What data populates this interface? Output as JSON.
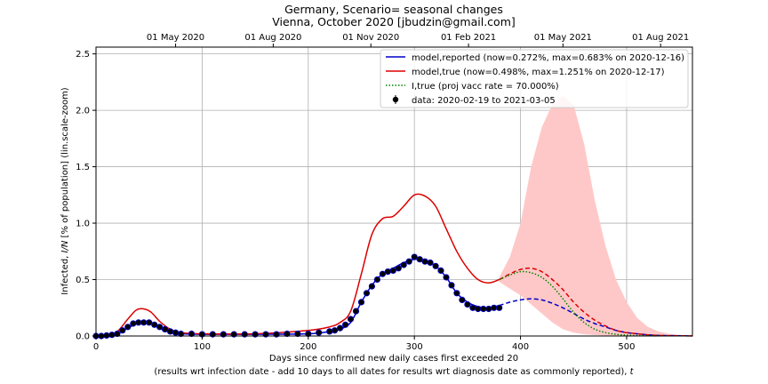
{
  "chart_data": {
    "type": "line",
    "title": "Germany, Scenario= seasonal changes",
    "subtitle": "Vienna, October 2020 [jbudzin@gmail.com]",
    "xlabel": "Days since confirmed new daily cases first exceeded 20",
    "xlabel2_pre": "(results wrt infection date - add 10 days to all dates for results wrt diagnosis date as commonly reported), ",
    "xlabel2_t": "t",
    "ylabel_pre": "Infected, ",
    "ylabel_it": "I/N",
    "ylabel_post": " [% of population] (lin.scale-zoom)",
    "xlim": [
      0,
      562
    ],
    "ylim": [
      0,
      2.56
    ],
    "grid": true,
    "legend_position": "top-right",
    "x_ticks": [
      "0",
      "100",
      "200",
      "300",
      "400",
      "500"
    ],
    "y_ticks": [
      "0.0",
      "0.5",
      "1.0",
      "1.5",
      "2.0",
      "2.5"
    ],
    "top_axis_ticks": [
      {
        "day": 75,
        "label": "01 May 2020"
      },
      {
        "day": 167,
        "label": "01 Aug 2020"
      },
      {
        "day": 259,
        "label": "01 Nov 2020"
      },
      {
        "day": 351,
        "label": "01 Feb 2021"
      },
      {
        "day": 440,
        "label": "01 May 2021"
      },
      {
        "day": 532,
        "label": "01 Aug 2021"
      }
    ],
    "legend": [
      {
        "label": "model,reported (now=0.272%, max=0.683% on 2020-12-16)",
        "color": "#0000cc",
        "style": "solid"
      },
      {
        "label": "model,true (now=0.498%, max=1.251% on 2020-12-17)",
        "color": "#dd0000",
        "style": "solid"
      },
      {
        "label": "I,true (proj vacc rate = 70.000%)",
        "color": "#008000",
        "style": "dotted"
      },
      {
        "label": "data: 2020-02-19 to 2021-03-05",
        "color": "#000000",
        "style": "marker"
      }
    ],
    "series": [
      {
        "name": "model,reported (now=0.272%, max=0.683% on 2020-12-16)",
        "color": "#0000cc",
        "x": [
          0,
          10,
          20,
          30,
          38,
          45,
          52,
          60,
          70,
          80,
          100,
          150,
          200,
          220,
          230,
          240,
          250,
          260,
          270,
          280,
          290,
          300,
          310,
          320,
          330,
          340,
          350,
          360,
          370,
          380
        ],
        "y": [
          0.0,
          0.005,
          0.02,
          0.07,
          0.11,
          0.12,
          0.11,
          0.07,
          0.03,
          0.02,
          0.015,
          0.015,
          0.02,
          0.04,
          0.06,
          0.12,
          0.3,
          0.45,
          0.55,
          0.6,
          0.65,
          0.68,
          0.67,
          0.62,
          0.52,
          0.38,
          0.3,
          0.26,
          0.25,
          0.27
        ]
      },
      {
        "name": "model,reported (projection)",
        "color": "#0000cc",
        "dashed": true,
        "x": [
          380,
          390,
          400,
          410,
          420,
          430,
          440,
          450,
          460,
          470,
          480,
          490,
          500,
          510,
          520,
          530,
          540,
          550,
          562
        ],
        "y": [
          0.27,
          0.3,
          0.32,
          0.33,
          0.32,
          0.29,
          0.25,
          0.2,
          0.15,
          0.11,
          0.08,
          0.05,
          0.03,
          0.02,
          0.01,
          0.005,
          0.003,
          0.002,
          0.001
        ]
      },
      {
        "name": "model,true (now=0.498%, max=1.251% on 2020-12-17)",
        "color": "#dd0000",
        "x": [
          0,
          10,
          20,
          30,
          38,
          45,
          52,
          60,
          70,
          80,
          100,
          150,
          200,
          220,
          230,
          240,
          250,
          260,
          270,
          280,
          290,
          300,
          310,
          320,
          330,
          340,
          350,
          360,
          370,
          380
        ],
        "y": [
          0.0,
          0.01,
          0.04,
          0.15,
          0.23,
          0.24,
          0.21,
          0.13,
          0.06,
          0.03,
          0.02,
          0.02,
          0.05,
          0.08,
          0.12,
          0.22,
          0.55,
          0.9,
          1.04,
          1.06,
          1.15,
          1.25,
          1.24,
          1.15,
          0.95,
          0.75,
          0.6,
          0.5,
          0.47,
          0.5
        ]
      },
      {
        "name": "model,true (projection)",
        "color": "#dd0000",
        "dashed": true,
        "x": [
          380,
          390,
          400,
          410,
          420,
          430,
          440,
          450,
          460,
          470,
          480,
          490,
          500,
          510,
          520,
          530,
          540,
          550,
          562
        ],
        "y": [
          0.5,
          0.55,
          0.59,
          0.6,
          0.57,
          0.5,
          0.41,
          0.3,
          0.21,
          0.14,
          0.09,
          0.05,
          0.03,
          0.02,
          0.01,
          0.005,
          0.003,
          0.002,
          0.001
        ]
      },
      {
        "name": "I,true (proj vacc rate = 70.000%)",
        "color": "#008000",
        "dotted": true,
        "x": [
          380,
          390,
          400,
          410,
          420,
          430,
          440,
          450,
          460,
          470,
          480,
          490,
          500,
          510,
          520,
          530
        ],
        "y": [
          0.5,
          0.54,
          0.57,
          0.56,
          0.52,
          0.44,
          0.33,
          0.21,
          0.12,
          0.06,
          0.03,
          0.015,
          0.008,
          0.004,
          0.002,
          0.001
        ]
      }
    ],
    "band": {
      "color": "#ffc8c8",
      "x": [
        380,
        390,
        400,
        410,
        420,
        430,
        440,
        450,
        460,
        470,
        480,
        490,
        500,
        510,
        520,
        530,
        540,
        550,
        562
      ],
      "upper": [
        0.52,
        0.7,
        1.0,
        1.5,
        1.85,
        2.05,
        2.13,
        2.05,
        1.7,
        1.2,
        0.8,
        0.5,
        0.3,
        0.16,
        0.08,
        0.04,
        0.02,
        0.01,
        0.005
      ],
      "lower": [
        0.48,
        0.42,
        0.36,
        0.28,
        0.2,
        0.12,
        0.06,
        0.03,
        0.015,
        0.008,
        0.004,
        0.002,
        0.001,
        0.0,
        0.0,
        0.0,
        0.0,
        0.0,
        0.0
      ]
    },
    "data_points": {
      "name": "data: 2020-02-19 to 2021-03-05",
      "x": [
        0,
        5,
        10,
        15,
        20,
        25,
        30,
        35,
        40,
        45,
        50,
        55,
        60,
        65,
        70,
        75,
        80,
        90,
        100,
        110,
        120,
        130,
        140,
        150,
        160,
        170,
        180,
        190,
        200,
        210,
        220,
        225,
        230,
        235,
        240,
        245,
        250,
        255,
        260,
        265,
        270,
        275,
        280,
        285,
        290,
        295,
        300,
        305,
        310,
        315,
        320,
        325,
        330,
        335,
        340,
        345,
        350,
        355,
        360,
        365,
        370,
        375,
        380
      ],
      "y": [
        0.0,
        0.0,
        0.005,
        0.01,
        0.02,
        0.05,
        0.08,
        0.11,
        0.12,
        0.12,
        0.12,
        0.1,
        0.08,
        0.06,
        0.04,
        0.03,
        0.02,
        0.02,
        0.015,
        0.015,
        0.015,
        0.015,
        0.015,
        0.015,
        0.015,
        0.015,
        0.02,
        0.02,
        0.02,
        0.03,
        0.04,
        0.05,
        0.07,
        0.1,
        0.15,
        0.22,
        0.3,
        0.38,
        0.44,
        0.5,
        0.55,
        0.57,
        0.58,
        0.6,
        0.63,
        0.66,
        0.7,
        0.68,
        0.66,
        0.65,
        0.62,
        0.58,
        0.52,
        0.45,
        0.38,
        0.32,
        0.28,
        0.25,
        0.24,
        0.24,
        0.24,
        0.25,
        0.25
      ]
    }
  }
}
